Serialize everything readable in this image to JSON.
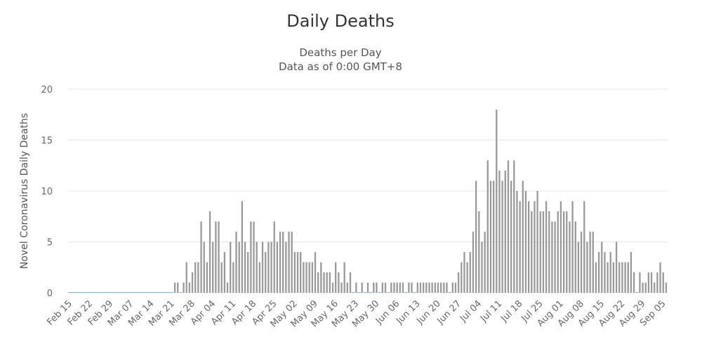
{
  "chart_data": {
    "type": "bar",
    "title": "Daily Deaths",
    "subtitle": "Deaths per Day",
    "subtitle2": "Data as of 0:00 GMT+8",
    "xlabel": "",
    "ylabel": "Novel Coronavirus Daily Deaths",
    "ylim": [
      0,
      20
    ],
    "yticks": [
      0,
      5,
      10,
      15,
      20
    ],
    "grid": true,
    "colors": {
      "bar": "#999999",
      "zero_bar": "#7cb5ec",
      "grid": "#e6e6e6"
    },
    "start_date": "Feb 15",
    "xtick_labels": [
      "Feb 15",
      "Feb 22",
      "Feb 29",
      "Mar 07",
      "Mar 14",
      "Mar 21",
      "Mar 28",
      "Apr 04",
      "Apr 11",
      "Apr 18",
      "Apr 25",
      "May 02",
      "May 09",
      "May 16",
      "May 23",
      "May 30",
      "Jun 06",
      "Jun 13",
      "Jun 20",
      "Jun 27",
      "Jul 04",
      "Jul 11",
      "Jul 18",
      "Jul 25",
      "Aug 01",
      "Aug 08",
      "Aug 15",
      "Aug 22",
      "Aug 29",
      "Sep 05"
    ],
    "values": [
      0,
      0,
      0,
      0,
      0,
      0,
      0,
      0,
      0,
      0,
      0,
      0,
      0,
      0,
      0,
      0,
      0,
      0,
      0,
      0,
      0,
      0,
      0,
      0,
      0,
      0,
      0,
      0,
      0,
      0,
      0,
      0,
      0,
      0,
      0,
      0,
      1,
      1,
      0,
      1,
      3,
      1,
      2,
      3,
      3,
      7,
      5,
      3,
      8,
      5,
      7,
      7,
      3,
      4,
      1,
      5,
      3,
      6,
      5,
      9,
      5,
      4,
      7,
      7,
      5,
      3,
      5,
      4,
      5,
      5,
      7,
      5,
      6,
      6,
      5,
      6,
      6,
      4,
      4,
      4,
      3,
      3,
      3,
      3,
      4,
      2,
      3,
      2,
      2,
      2,
      1,
      3,
      2,
      1,
      3,
      1,
      2,
      0,
      1,
      0,
      1,
      0,
      1,
      0,
      1,
      1,
      0,
      1,
      1,
      0,
      1,
      1,
      1,
      1,
      1,
      0,
      1,
      1,
      0,
      1,
      1,
      1,
      1,
      1,
      1,
      1,
      1,
      1,
      1,
      1,
      0,
      1,
      1,
      2,
      3,
      4,
      3,
      4,
      6,
      11,
      8,
      5,
      6,
      13,
      11,
      11,
      18,
      12,
      11,
      12,
      13,
      11,
      13,
      10,
      9,
      11,
      10,
      9,
      8,
      9,
      10,
      8,
      8,
      9,
      8,
      7,
      7,
      8,
      9,
      8,
      8,
      7,
      9,
      7,
      5,
      6,
      9,
      5,
      6,
      6,
      3,
      4,
      5,
      4,
      3,
      4,
      3,
      5,
      3,
      3,
      3,
      3,
      4,
      2,
      0,
      2,
      1,
      1,
      2,
      2,
      1,
      2,
      3,
      2,
      1
    ]
  }
}
